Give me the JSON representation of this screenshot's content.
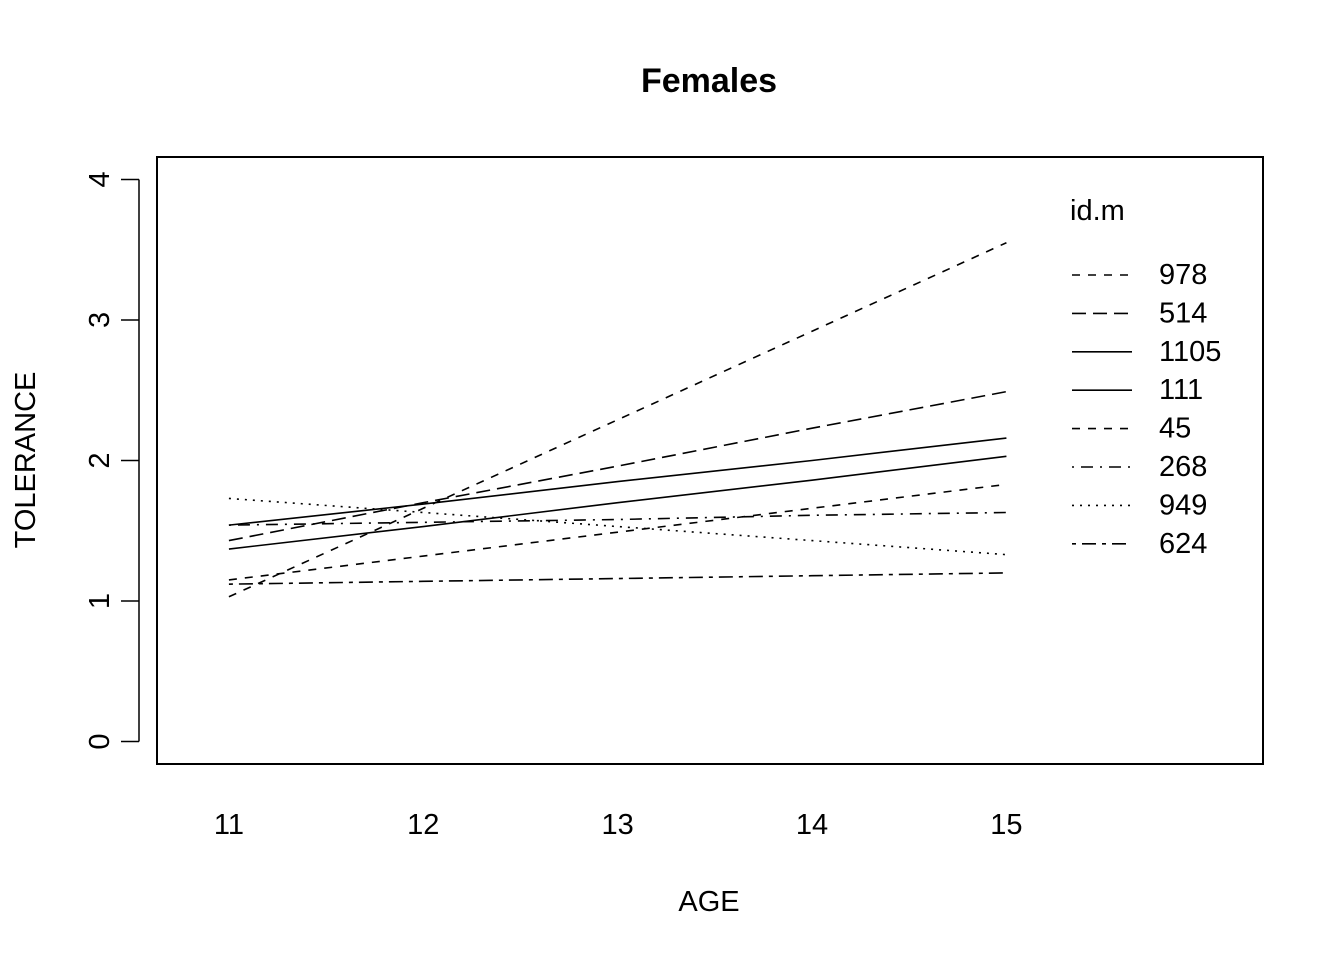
{
  "chart_data": {
    "type": "line",
    "title": "Females",
    "xlabel": "AGE",
    "ylabel": "TOLERANCE",
    "x": [
      11,
      12,
      13,
      14,
      15
    ],
    "xlim": [
      10.63,
      16.32
    ],
    "ylim": [
      -0.16,
      4.16
    ],
    "xticks": [
      "11",
      "12",
      "13",
      "14",
      "15"
    ],
    "yticks": [
      "0",
      "1",
      "2",
      "3",
      "4"
    ],
    "grid": false,
    "legend": {
      "title": "id.m",
      "placement": "top-right"
    },
    "series": [
      {
        "name": "978",
        "linetype": "dashed",
        "values": [
          1.03,
          1.66,
          2.29,
          2.92,
          3.55
        ]
      },
      {
        "name": "514",
        "linetype": "longdash",
        "values": [
          1.43,
          1.7,
          1.96,
          2.23,
          2.49
        ]
      },
      {
        "name": "1105",
        "linetype": "solid",
        "values": [
          1.54,
          1.69,
          1.85,
          2.0,
          2.16
        ]
      },
      {
        "name": "111",
        "linetype": "solid",
        "values": [
          1.37,
          1.53,
          1.7,
          1.86,
          2.03
        ]
      },
      {
        "name": "45",
        "linetype": "dashed",
        "values": [
          1.15,
          1.32,
          1.49,
          1.66,
          1.83
        ]
      },
      {
        "name": "268",
        "linetype": "dotdash",
        "values": [
          1.54,
          1.56,
          1.58,
          1.61,
          1.63
        ]
      },
      {
        "name": "949",
        "linetype": "dotted",
        "values": [
          1.73,
          1.63,
          1.53,
          1.43,
          1.33
        ]
      },
      {
        "name": "624",
        "linetype": "twodash",
        "values": [
          1.12,
          1.14,
          1.16,
          1.18,
          1.2
        ]
      }
    ]
  }
}
